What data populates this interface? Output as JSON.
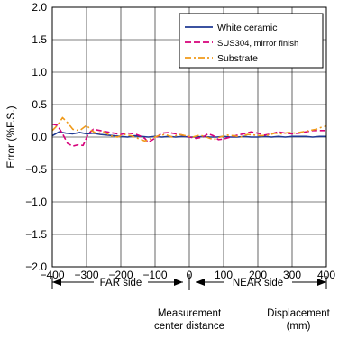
{
  "chart_data": {
    "type": "line",
    "xlabel": "Displacement\n(mm)",
    "ylabel": "Error (%F.S.)",
    "xlim": [
      -400,
      400
    ],
    "ylim": [
      -2.0,
      2.0
    ],
    "x_ticks": [
      -400,
      -300,
      -200,
      -100,
      0,
      100,
      200,
      300,
      400
    ],
    "y_ticks": [
      2.0,
      1.5,
      1.0,
      0.5,
      0.0,
      -0.5,
      -1.0,
      -1.5,
      -2.0
    ],
    "x_tick_labels": [
      "−400",
      "−300",
      "−200",
      "−100",
      "0",
      "100",
      "200",
      "300",
      "400"
    ],
    "y_tick_labels": [
      "2.0",
      "1.5",
      "1.0",
      "0.5",
      "0.0",
      "−0.5",
      "−1.0",
      "−1.5",
      "−2.0"
    ],
    "grid": true,
    "legend_position": "top-right",
    "series": [
      {
        "name": "White ceramic",
        "color": "#1f3a93",
        "dash": "solid",
        "points": [
          [
            -400,
            0.02
          ],
          [
            -380,
            0.08
          ],
          [
            -360,
            0.06
          ],
          [
            -340,
            0.05
          ],
          [
            -320,
            0.07
          ],
          [
            -300,
            0.05
          ],
          [
            -280,
            0.06
          ],
          [
            -260,
            0.04
          ],
          [
            -240,
            0.03
          ],
          [
            -220,
            0.02
          ],
          [
            -200,
            0.01
          ],
          [
            -180,
            0.0
          ],
          [
            -160,
            0.02
          ],
          [
            -140,
            0.01
          ],
          [
            -120,
            0.0
          ],
          [
            -100,
            0.01
          ],
          [
            -80,
            0.0
          ],
          [
            -60,
            0.01
          ],
          [
            -40,
            0.0
          ],
          [
            -20,
            0.01
          ],
          [
            0,
            0.0
          ],
          [
            20,
            0.0
          ],
          [
            40,
            0.01
          ],
          [
            60,
            0.0
          ],
          [
            80,
            0.0
          ],
          [
            100,
            0.01
          ],
          [
            120,
            0.0
          ],
          [
            140,
            0.0
          ],
          [
            160,
            0.01
          ],
          [
            180,
            0.0
          ],
          [
            200,
            0.0
          ],
          [
            220,
            0.01
          ],
          [
            240,
            0.0
          ],
          [
            260,
            0.01
          ],
          [
            280,
            0.0
          ],
          [
            300,
            0.01
          ],
          [
            320,
            0.01
          ],
          [
            340,
            0.01
          ],
          [
            360,
            0.0
          ],
          [
            380,
            0.01
          ],
          [
            400,
            0.01
          ]
        ]
      },
      {
        "name": "SUS304, mirror finish",
        "color": "#d6007a",
        "dash": "dashed",
        "points": [
          [
            -400,
            0.2
          ],
          [
            -385,
            0.18
          ],
          [
            -370,
            0.05
          ],
          [
            -355,
            -0.1
          ],
          [
            -340,
            -0.14
          ],
          [
            -325,
            -0.12
          ],
          [
            -310,
            -0.13
          ],
          [
            -295,
            0.05
          ],
          [
            -280,
            0.12
          ],
          [
            -260,
            0.1
          ],
          [
            -240,
            0.08
          ],
          [
            -220,
            0.06
          ],
          [
            -200,
            0.04
          ],
          [
            -180,
            0.06
          ],
          [
            -160,
            0.05
          ],
          [
            -145,
            0.02
          ],
          [
            -130,
            -0.02
          ],
          [
            -120,
            -0.08
          ],
          [
            -110,
            -0.05
          ],
          [
            -95,
            0.0
          ],
          [
            -80,
            0.06
          ],
          [
            -60,
            0.07
          ],
          [
            -40,
            0.05
          ],
          [
            -20,
            0.03
          ],
          [
            0,
            0.0
          ],
          [
            20,
            -0.02
          ],
          [
            40,
            0.0
          ],
          [
            55,
            0.05
          ],
          [
            70,
            0.02
          ],
          [
            85,
            -0.04
          ],
          [
            100,
            -0.03
          ],
          [
            120,
            0.0
          ],
          [
            140,
            0.03
          ],
          [
            160,
            0.05
          ],
          [
            180,
            0.08
          ],
          [
            200,
            0.06
          ],
          [
            220,
            0.03
          ],
          [
            240,
            0.05
          ],
          [
            260,
            0.08
          ],
          [
            280,
            0.06
          ],
          [
            300,
            0.05
          ],
          [
            320,
            0.06
          ],
          [
            340,
            0.08
          ],
          [
            360,
            0.1
          ],
          [
            380,
            0.1
          ],
          [
            400,
            0.1
          ]
        ]
      },
      {
        "name": "Substrate",
        "color": "#f09a1a",
        "dash": "dashdot",
        "points": [
          [
            -400,
            0.1
          ],
          [
            -385,
            0.18
          ],
          [
            -370,
            0.3
          ],
          [
            -355,
            0.22
          ],
          [
            -340,
            0.12
          ],
          [
            -320,
            0.1
          ],
          [
            -300,
            0.18
          ],
          [
            -285,
            0.1
          ],
          [
            -270,
            0.05
          ],
          [
            -250,
            0.08
          ],
          [
            -230,
            0.02
          ],
          [
            -210,
            0.0
          ],
          [
            -190,
            0.04
          ],
          [
            -170,
            0.02
          ],
          [
            -150,
            -0.02
          ],
          [
            -130,
            -0.06
          ],
          [
            -110,
            -0.02
          ],
          [
            -90,
            0.02
          ],
          [
            -70,
            0.04
          ],
          [
            -50,
            0.0
          ],
          [
            -30,
            0.04
          ],
          [
            -10,
            0.02
          ],
          [
            10,
            0.0
          ],
          [
            30,
            0.03
          ],
          [
            50,
            0.0
          ],
          [
            70,
            -0.04
          ],
          [
            90,
            0.0
          ],
          [
            110,
            0.03
          ],
          [
            130,
            0.02
          ],
          [
            150,
            0.0
          ],
          [
            170,
            0.04
          ],
          [
            190,
            0.03
          ],
          [
            210,
            0.02
          ],
          [
            230,
            0.03
          ],
          [
            250,
            0.06
          ],
          [
            270,
            0.05
          ],
          [
            290,
            0.07
          ],
          [
            310,
            0.06
          ],
          [
            330,
            0.08
          ],
          [
            350,
            0.1
          ],
          [
            370,
            0.12
          ],
          [
            385,
            0.15
          ],
          [
            400,
            0.17
          ]
        ]
      }
    ],
    "annotations": {
      "far_side": "FAR side",
      "near_side": "NEAR side",
      "center_line1": "Measurement",
      "center_line2": "center distance",
      "xlabel_line1": "Displacement",
      "xlabel_line2": "(mm)"
    }
  }
}
